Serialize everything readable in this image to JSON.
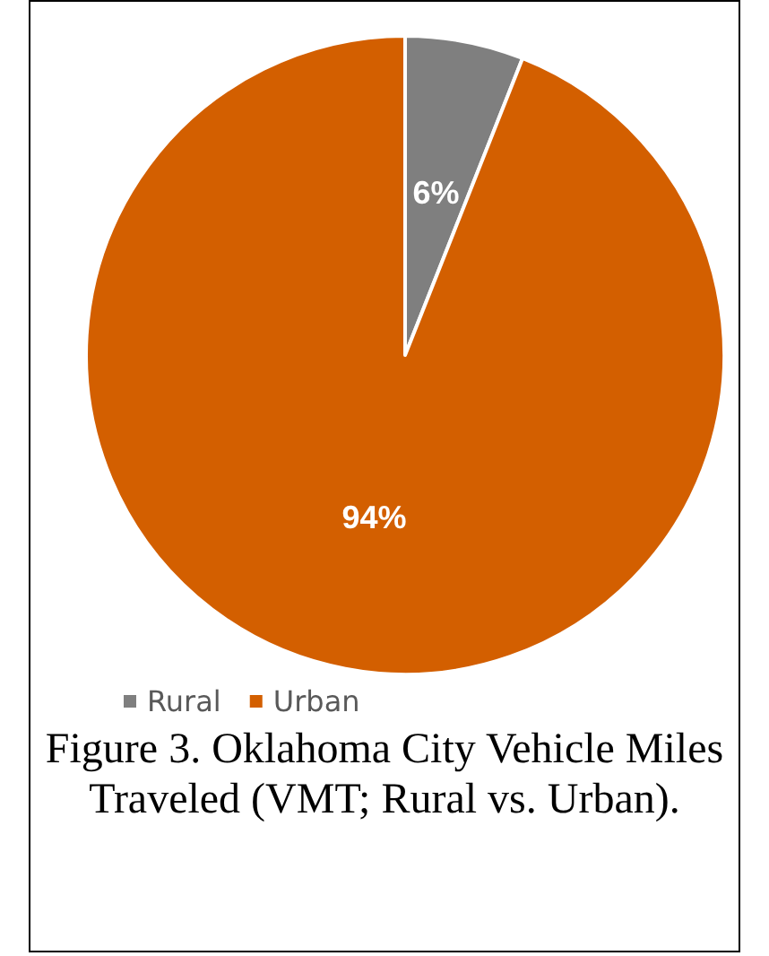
{
  "chart_data": {
    "type": "pie",
    "title": "Figure 3. Oklahoma City Vehicle Miles Traveled (VMT; Rural vs. Urban).",
    "categories": [
      "Rural",
      "Urban"
    ],
    "values": [
      6,
      94
    ],
    "colors": [
      "#7f7f7f",
      "#d35f00"
    ],
    "value_labels": [
      "6%",
      "94%"
    ],
    "legend": "bottom left"
  }
}
